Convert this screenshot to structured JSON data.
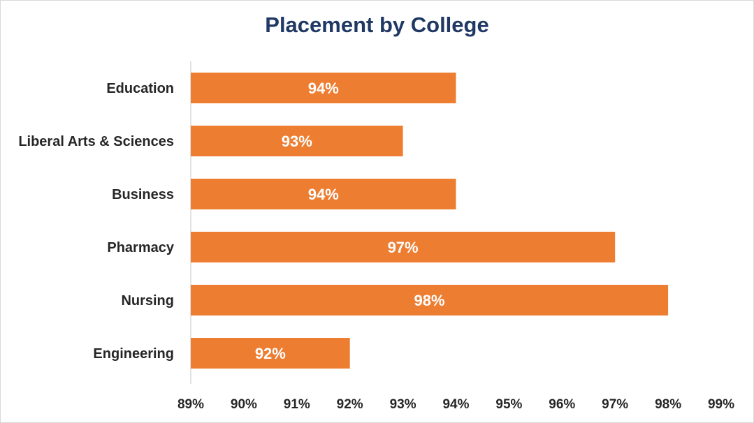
{
  "chart_data": {
    "type": "bar",
    "orientation": "horizontal",
    "title": "Placement by College",
    "categories": [
      "Education",
      "Liberal Arts & Sciences",
      "Business",
      "Pharmacy",
      "Nursing",
      "Engineering"
    ],
    "values": [
      94,
      93,
      94,
      97,
      98,
      92
    ],
    "value_labels": [
      "94%",
      "93%",
      "94%",
      "97%",
      "98%",
      "92%"
    ],
    "x_ticks": [
      "89%",
      "90%",
      "91%",
      "92%",
      "93%",
      "94%",
      "95%",
      "96%",
      "97%",
      "98%",
      "99%"
    ],
    "xlim": [
      89,
      99
    ],
    "grid": false,
    "legend": "none",
    "bar_color": "#ed7d31"
  }
}
